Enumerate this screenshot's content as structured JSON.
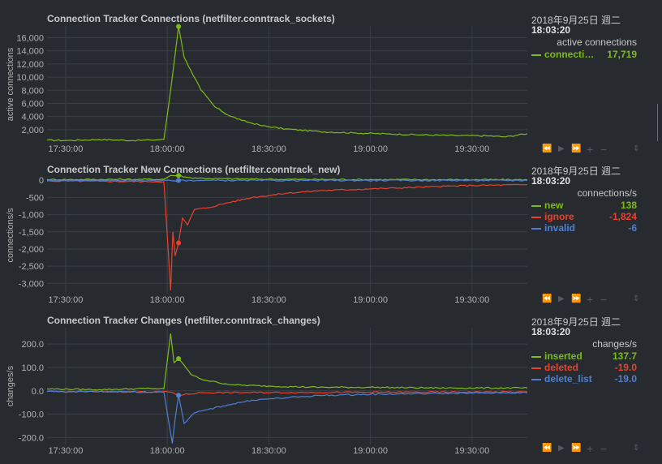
{
  "panels": [
    {
      "title": "Connection Tracker Connections (netfilter.conntrack_sockets)",
      "ylabel": "active connections",
      "legend": {
        "date": "2018年9月25日 週二",
        "time": "18:03:20",
        "units": "active connections",
        "items": [
          {
            "name": "connecti…",
            "value": "17,719",
            "color": "#7cbb19"
          }
        ]
      }
    },
    {
      "title": "Connection Tracker New Connections (netfilter.conntrack_new)",
      "ylabel": "connections/s",
      "legend": {
        "date": "2018年9月25日 週二",
        "time": "18:03:20",
        "units": "connections/s",
        "items": [
          {
            "name": "new",
            "value": "138",
            "color": "#7cbb19"
          },
          {
            "name": "ignore",
            "value": "-1,824",
            "color": "#e8422c"
          },
          {
            "name": "invalid",
            "value": "-6",
            "color": "#4e7fd4"
          }
        ]
      }
    },
    {
      "title": "Connection Tracker Changes (netfilter.conntrack_changes)",
      "ylabel": "changes/s",
      "legend": {
        "date": "2018年9月25日 週二",
        "time": "18:03:20",
        "units": "changes/s",
        "items": [
          {
            "name": "inserted",
            "value": "137.7",
            "color": "#7cbb19"
          },
          {
            "name": "deleted",
            "value": "-19.0",
            "color": "#e8422c"
          },
          {
            "name": "delete_list",
            "value": "-19.0",
            "color": "#4e7fd4"
          }
        ]
      }
    }
  ],
  "toolbar": {
    "rewind_icon": "⏪",
    "play_icon": "▶",
    "forward_icon": "⏩",
    "zoom_in_icon": "+",
    "zoom_out_icon": "−",
    "resize_icon": "⇕"
  },
  "chart_data": [
    {
      "type": "line",
      "title": "Connection Tracker Connections (netfilter.conntrack_sockets)",
      "ylabel": "active connections",
      "xlabel": "",
      "x_ticks": [
        "17:30:00",
        "18:00:00",
        "18:30:00",
        "19:00:00",
        "19:30:00"
      ],
      "x_range": [
        "17:24:30",
        "19:46:20"
      ],
      "y_ticks": [
        2000,
        4000,
        6000,
        8000,
        10000,
        12000,
        14000,
        16000
      ],
      "y_tick_labels": [
        "2,000",
        "4,000",
        "6,000",
        "8,000",
        "10,000",
        "12,000",
        "14,000",
        "16,000"
      ],
      "ylim": [
        0,
        17800
      ],
      "grid": true,
      "series": [
        {
          "name": "connecti…",
          "color": "#7cbb19",
          "x": [
            "17:24:30",
            "17:30:00",
            "17:40:00",
            "17:50:00",
            "17:55:00",
            "17:59:00",
            "18:01:00",
            "18:03:20",
            "18:05:00",
            "18:07:00",
            "18:10:00",
            "18:14:00",
            "18:18:00",
            "18:22:00",
            "18:28:00",
            "18:35:00",
            "18:45:00",
            "18:55:00",
            "19:05:00",
            "19:15:00",
            "19:25:00",
            "19:35:00",
            "19:40:00",
            "19:46:20"
          ],
          "values": [
            400,
            350,
            500,
            350,
            420,
            500,
            8000,
            17719,
            13000,
            11000,
            8000,
            5500,
            4200,
            3400,
            2600,
            2100,
            1700,
            1500,
            1350,
            1200,
            1100,
            1050,
            900,
            1400
          ]
        }
      ]
    },
    {
      "type": "line",
      "title": "Connection Tracker New Connections (netfilter.conntrack_new)",
      "ylabel": "connections/s",
      "xlabel": "",
      "x_ticks": [
        "17:30:00",
        "18:00:00",
        "18:30:00",
        "19:00:00",
        "19:30:00"
      ],
      "x_range": [
        "17:24:30",
        "19:46:20"
      ],
      "y_ticks": [
        0,
        -500,
        -1000,
        -1500,
        -2000,
        -2500,
        -3000
      ],
      "y_tick_labels": [
        "0",
        "-500",
        "-1,000",
        "-1,500",
        "-2,000",
        "-2,500",
        "-3,000"
      ],
      "ylim": [
        -3300,
        100
      ],
      "grid": true,
      "series": [
        {
          "name": "new",
          "color": "#7cbb19",
          "x": [
            "17:24:30",
            "17:59:00",
            "18:01:00",
            "18:03:20",
            "18:06:00",
            "18:12:00",
            "18:30:00",
            "19:00:00",
            "19:46:20"
          ],
          "values": [
            20,
            30,
            140,
            138,
            80,
            50,
            30,
            20,
            15
          ]
        },
        {
          "name": "ignore",
          "color": "#e8422c",
          "x": [
            "17:24:30",
            "17:40:00",
            "17:55:00",
            "17:59:00",
            "18:01:00",
            "18:01:40",
            "18:02:20",
            "18:03:20",
            "18:04:30",
            "18:06:00",
            "18:08:00",
            "18:12:00",
            "18:18:00",
            "18:25:00",
            "18:35:00",
            "18:45:00",
            "19:00:00",
            "19:15:00",
            "19:30:00",
            "19:46:20"
          ],
          "values": [
            -20,
            -30,
            -40,
            -40,
            -3200,
            -1500,
            -2200,
            -1824,
            -1100,
            -1300,
            -850,
            -800,
            -650,
            -500,
            -380,
            -300,
            -250,
            -200,
            -150,
            -130
          ]
        },
        {
          "name": "invalid",
          "color": "#4e7fd4",
          "x": [
            "17:24:30",
            "18:01:00",
            "18:03:20",
            "18:10:00",
            "19:46:20"
          ],
          "values": [
            -5,
            -8,
            -6,
            -5,
            -4
          ]
        }
      ]
    },
    {
      "type": "line",
      "title": "Connection Tracker Changes (netfilter.conntrack_changes)",
      "ylabel": "changes/s",
      "xlabel": "",
      "x_ticks": [
        "17:30:00",
        "18:00:00",
        "18:30:00",
        "19:00:00",
        "19:30:00"
      ],
      "x_range": [
        "17:24:30",
        "19:46:20"
      ],
      "y_ticks": [
        200,
        100,
        0,
        -100,
        -200
      ],
      "y_tick_labels": [
        "200.0",
        "100.0",
        "0.0",
        "-100.0",
        "-200.0"
      ],
      "ylim": [
        -230,
        270
      ],
      "grid": true,
      "series": [
        {
          "name": "inserted",
          "color": "#7cbb19",
          "x": [
            "17:24:30",
            "17:40:00",
            "17:55:00",
            "17:59:00",
            "18:01:00",
            "18:02:00",
            "18:03:20",
            "18:05:00",
            "18:07:00",
            "18:10:00",
            "18:15:00",
            "18:20:00",
            "18:30:00",
            "18:45:00",
            "19:00:00",
            "19:20:00",
            "19:46:20"
          ],
          "values": [
            8,
            5,
            10,
            8,
            245,
            120,
            137.7,
            110,
            70,
            50,
            35,
            25,
            20,
            15,
            15,
            12,
            12
          ]
        },
        {
          "name": "deleted",
          "color": "#e8422c",
          "x": [
            "17:24:30",
            "18:01:00",
            "18:03:20",
            "18:10:00",
            "19:46:20"
          ],
          "values": [
            -3,
            -5,
            -19,
            -8,
            -5
          ]
        },
        {
          "name": "delete_list",
          "color": "#4e7fd4",
          "x": [
            "17:24:30",
            "17:59:00",
            "18:01:30",
            "18:02:20",
            "18:03:20",
            "18:05:00",
            "18:08:00",
            "18:12:00",
            "18:18:00",
            "18:25:00",
            "18:35:00",
            "18:45:00",
            "19:00:00",
            "19:15:00",
            "19:30:00",
            "19:46:20"
          ],
          "values": [
            -3,
            -5,
            -225,
            -120,
            -19,
            -140,
            -95,
            -80,
            -60,
            -40,
            -30,
            -20,
            -15,
            -12,
            -10,
            -8
          ]
        }
      ]
    }
  ]
}
